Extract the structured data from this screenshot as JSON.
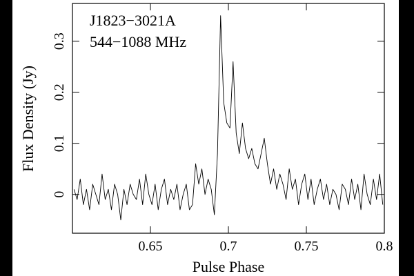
{
  "chart_data": {
    "type": "line",
    "title": "J1823−3021A",
    "subtitle": "544−1088 MHz",
    "x_label": "Pulse Phase",
    "y_label": "Flux Density (Jy)",
    "color": "#000000",
    "x": [
      0.601,
      0.603,
      0.605,
      0.607,
      0.609,
      0.611,
      0.613,
      0.615,
      0.617,
      0.619,
      0.621,
      0.623,
      0.625,
      0.627,
      0.629,
      0.631,
      0.633,
      0.635,
      0.637,
      0.639,
      0.641,
      0.643,
      0.645,
      0.647,
      0.649,
      0.651,
      0.653,
      0.655,
      0.657,
      0.659,
      0.661,
      0.663,
      0.665,
      0.667,
      0.669,
      0.671,
      0.673,
      0.675,
      0.677,
      0.679,
      0.681,
      0.683,
      0.685,
      0.687,
      0.689,
      0.691,
      0.693,
      0.695,
      0.697,
      0.699,
      0.701,
      0.703,
      0.705,
      0.707,
      0.709,
      0.711,
      0.713,
      0.715,
      0.717,
      0.719,
      0.721,
      0.723,
      0.725,
      0.727,
      0.729,
      0.731,
      0.733,
      0.735,
      0.737,
      0.739,
      0.741,
      0.743,
      0.745,
      0.747,
      0.749,
      0.751,
      0.753,
      0.755,
      0.757,
      0.759,
      0.761,
      0.763,
      0.765,
      0.767,
      0.769,
      0.771,
      0.773,
      0.775,
      0.777,
      0.779,
      0.781,
      0.783,
      0.785,
      0.787,
      0.789,
      0.791,
      0.793,
      0.795,
      0.797,
      0.799
    ],
    "values": [
      0.01,
      -0.01,
      0.03,
      -0.02,
      0.01,
      -0.03,
      0.02,
      0.0,
      -0.02,
      0.04,
      -0.01,
      0.01,
      -0.03,
      0.02,
      0.0,
      -0.05,
      0.01,
      -0.02,
      0.02,
      0.0,
      -0.01,
      0.03,
      -0.02,
      0.04,
      0.0,
      -0.02,
      0.02,
      -0.03,
      0.01,
      0.03,
      -0.02,
      0.01,
      -0.01,
      0.02,
      -0.03,
      0.0,
      0.02,
      -0.03,
      -0.02,
      0.06,
      0.02,
      0.05,
      0.0,
      0.03,
      0.01,
      -0.04,
      0.08,
      0.35,
      0.18,
      0.14,
      0.13,
      0.26,
      0.12,
      0.08,
      0.14,
      0.09,
      0.07,
      0.09,
      0.06,
      0.05,
      0.08,
      0.11,
      0.06,
      0.02,
      0.05,
      0.01,
      0.04,
      0.02,
      -0.01,
      0.05,
      0.01,
      0.03,
      -0.02,
      0.02,
      0.04,
      -0.01,
      0.03,
      -0.02,
      0.01,
      0.03,
      -0.01,
      0.02,
      -0.02,
      0.01,
      0.0,
      -0.03,
      0.02,
      0.01,
      -0.02,
      0.03,
      -0.01,
      0.02,
      -0.03,
      0.04,
      0.0,
      -0.02,
      0.03,
      -0.01,
      0.04,
      -0.02
    ],
    "xlim": [
      0.6,
      0.8
    ],
    "ylim": [
      -0.076,
      0.374
    ],
    "xticks": [
      0.65,
      0.7,
      0.75,
      0.8
    ],
    "yticks": [
      0,
      0.1,
      0.2,
      0.3
    ]
  }
}
